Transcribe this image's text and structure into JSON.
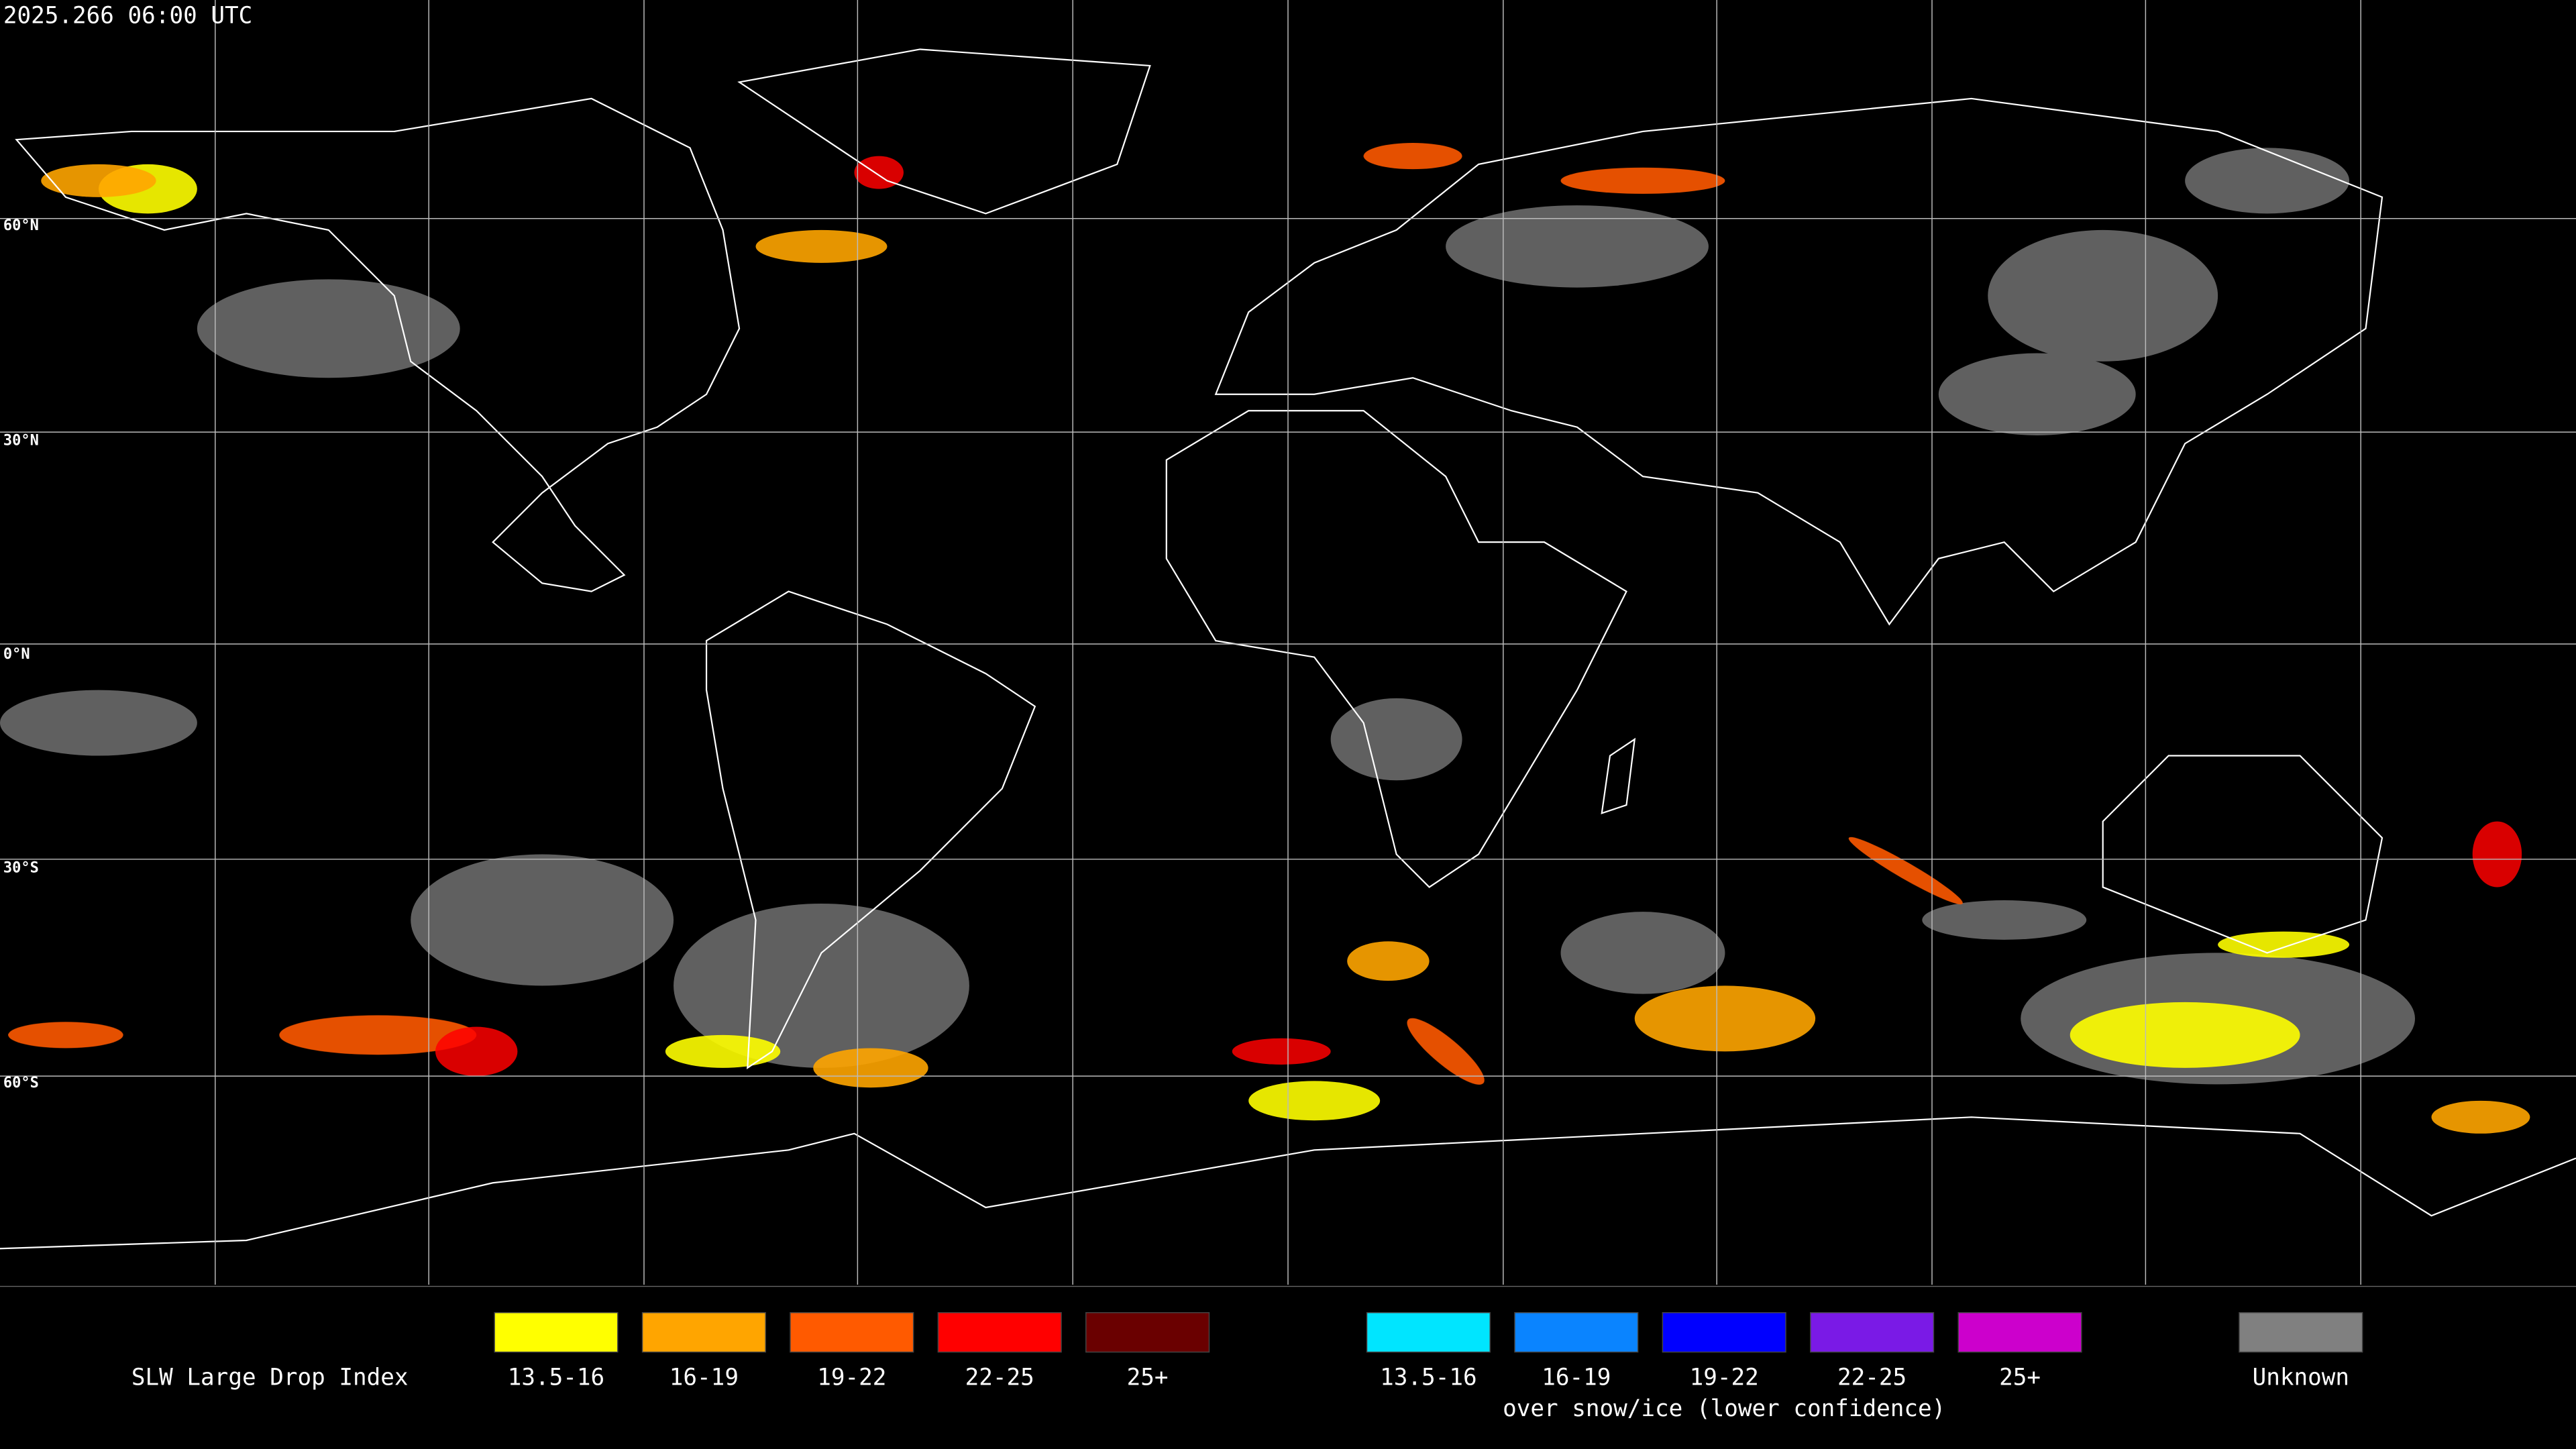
{
  "header": {
    "timestamp": "2025.266 06:00 UTC"
  },
  "map": {
    "latitude_labels": [
      "60°N",
      "30°N",
      "0°N",
      "30°S",
      "60°S"
    ]
  },
  "legend": {
    "title": "SLW Large Drop Index",
    "groups": [
      {
        "items": [
          {
            "label": "13.5-16",
            "color": "#ffff00"
          },
          {
            "label": "16-19",
            "color": "#ffa500"
          },
          {
            "label": "19-22",
            "color": "#ff5a00"
          },
          {
            "label": "22-25",
            "color": "#ff0000"
          },
          {
            "label": "25+",
            "color": "#6a0000"
          }
        ]
      },
      {
        "items": [
          {
            "label": "13.5-16",
            "color": "#00e5ff"
          },
          {
            "label": "16-19",
            "color": "#0a84ff"
          },
          {
            "label": "19-22",
            "color": "#0000ff"
          },
          {
            "label": "22-25",
            "color": "#7a1ae6"
          },
          {
            "label": "25+",
            "color": "#cc00cc"
          }
        ],
        "caption": "over snow/ice (lower confidence)"
      },
      {
        "items": [
          {
            "label": "Unknown",
            "color": "#808080"
          }
        ]
      }
    ]
  }
}
